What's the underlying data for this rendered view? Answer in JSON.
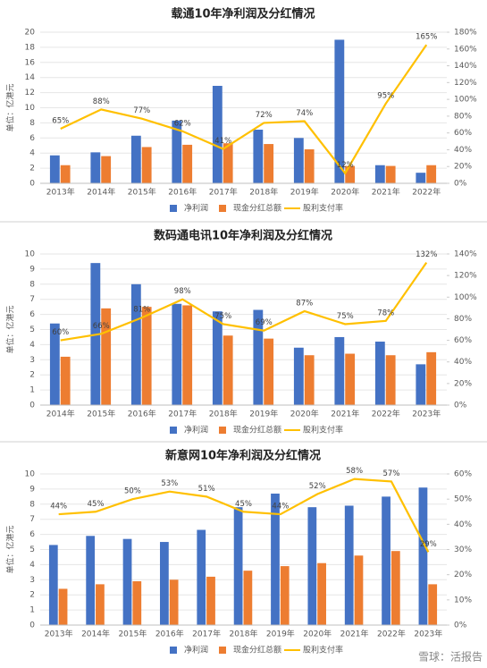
{
  "chart_data": [
    {
      "type": "bar-line",
      "title": "载通10年净利润及分红情况",
      "y_label": "单位：亿港元",
      "categories": [
        "2013年",
        "2014年",
        "2015年",
        "2016年",
        "2017年",
        "2018年",
        "2019年",
        "2020年",
        "2021年",
        "2022年"
      ],
      "series": [
        {
          "name": "净利润",
          "color": "#4472c4",
          "type": "bar",
          "values": [
            3.7,
            4.1,
            6.3,
            8.3,
            12.9,
            7.1,
            6.0,
            19.0,
            2.4,
            1.4
          ]
        },
        {
          "name": "现金分红总额",
          "color": "#ed7d31",
          "type": "bar",
          "values": [
            2.4,
            3.6,
            4.8,
            5.1,
            5.3,
            5.2,
            4.5,
            2.3,
            2.3,
            2.4
          ]
        },
        {
          "name": "股利支付率",
          "color": "#ffc000",
          "type": "line",
          "axis": "y2",
          "values": [
            65,
            88,
            77,
            62,
            41,
            72,
            74,
            12,
            95,
            165
          ],
          "value_labels": [
            "65%",
            "88%",
            "77%",
            "62%",
            "41%",
            "72%",
            "74%",
            "12%",
            "95%",
            "165%"
          ]
        }
      ],
      "ylim": [
        0,
        20
      ],
      "yticks": [
        0,
        2,
        4,
        6,
        8,
        10,
        12,
        14,
        16,
        18,
        20
      ],
      "y2lim": [
        0,
        180
      ],
      "y2ticks": [
        {
          "value": 0,
          "label": "0%"
        },
        {
          "value": 20,
          "label": "20%"
        },
        {
          "value": 40,
          "label": "40%"
        },
        {
          "value": 60,
          "label": "60%"
        },
        {
          "value": 80,
          "label": "80%"
        },
        {
          "value": 100,
          "label": "100%"
        },
        {
          "value": 120,
          "label": "120%"
        },
        {
          "value": 140,
          "label": "140%"
        },
        {
          "value": 160,
          "label": "160%"
        },
        {
          "value": 180,
          "label": "180%"
        }
      ]
    },
    {
      "type": "bar-line",
      "title": "数码通电讯10年净利润及分红情况",
      "y_label": "单位：亿港元",
      "categories": [
        "2014年",
        "2015年",
        "2016年",
        "2017年",
        "2018年",
        "2019年",
        "2020年",
        "2021年",
        "2022年",
        "2023年"
      ],
      "series": [
        {
          "name": "净利润",
          "color": "#4472c4",
          "type": "bar",
          "values": [
            5.4,
            9.4,
            8.0,
            6.7,
            6.2,
            6.3,
            3.8,
            4.5,
            4.2,
            2.7
          ]
        },
        {
          "name": "现金分红总额",
          "color": "#ed7d31",
          "type": "bar",
          "values": [
            3.2,
            6.4,
            6.5,
            6.6,
            4.6,
            4.4,
            3.3,
            3.4,
            3.3,
            3.5
          ]
        },
        {
          "name": "股利支付率",
          "color": "#ffc000",
          "type": "line",
          "axis": "y2",
          "values": [
            60,
            66,
            81,
            98,
            75,
            69,
            87,
            75,
            78,
            132
          ],
          "value_labels": [
            "60%",
            "66%",
            "81%",
            "98%",
            "75%",
            "69%",
            "87%",
            "75%",
            "78%",
            "132%"
          ]
        }
      ],
      "ylim": [
        0,
        10
      ],
      "yticks": [
        0,
        1,
        2,
        3,
        4,
        5,
        6,
        7,
        8,
        9,
        10
      ],
      "y2lim": [
        0,
        140
      ],
      "y2ticks": [
        {
          "value": 0,
          "label": "0%"
        },
        {
          "value": 20,
          "label": "20%"
        },
        {
          "value": 40,
          "label": "40%"
        },
        {
          "value": 60,
          "label": "60%"
        },
        {
          "value": 80,
          "label": "80%"
        },
        {
          "value": 100,
          "label": "100%"
        },
        {
          "value": 120,
          "label": "120%"
        },
        {
          "value": 140,
          "label": "140%"
        }
      ]
    },
    {
      "type": "bar-line",
      "title": "新意网10年净利润及分红情况",
      "y_label": "单位：亿港元",
      "categories": [
        "2013年",
        "2014年",
        "2015年",
        "2016年",
        "2017年",
        "2018年",
        "2019年",
        "2020年",
        "2021年",
        "2022年",
        "2023年"
      ],
      "series": [
        {
          "name": "净利润",
          "color": "#4472c4",
          "type": "bar",
          "values": [
            5.3,
            5.9,
            5.7,
            5.5,
            6.3,
            7.8,
            8.7,
            7.8,
            7.9,
            8.5,
            9.1
          ]
        },
        {
          "name": "现金分红总额",
          "color": "#ed7d31",
          "type": "bar",
          "values": [
            2.4,
            2.7,
            2.9,
            3.0,
            3.2,
            3.6,
            3.9,
            4.1,
            4.6,
            4.9,
            2.7
          ]
        },
        {
          "name": "股利支付率",
          "color": "#ffc000",
          "type": "line",
          "axis": "y2",
          "values": [
            44,
            45,
            50,
            53,
            51,
            45,
            44,
            52,
            58,
            57,
            29
          ],
          "value_labels": [
            "44%",
            "45%",
            "50%",
            "53%",
            "51%",
            "45%",
            "44%",
            "52%",
            "58%",
            "57%",
            "29%"
          ]
        }
      ],
      "ylim": [
        0,
        10
      ],
      "yticks": [
        0,
        1,
        2,
        3,
        4,
        5,
        6,
        7,
        8,
        9,
        10
      ],
      "y2lim": [
        0,
        60
      ],
      "y2ticks": [
        {
          "value": 0,
          "label": "0%"
        },
        {
          "value": 10,
          "label": "10%"
        },
        {
          "value": 20,
          "label": "20%"
        },
        {
          "value": 30,
          "label": "30%"
        },
        {
          "value": 40,
          "label": "40%"
        },
        {
          "value": 50,
          "label": "50%"
        },
        {
          "value": 60,
          "label": "60%"
        }
      ]
    }
  ],
  "footer": "雪球：活报告"
}
